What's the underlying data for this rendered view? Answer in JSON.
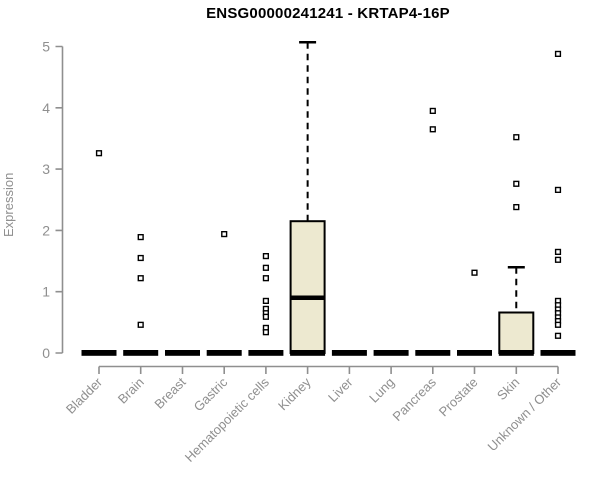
{
  "page": {
    "title": "ENSG00000241241 - KRTAP4-16P"
  },
  "chart_data": {
    "type": "boxplot",
    "title": "ENSG00000241241 - KRTAP4-16P",
    "xlabel": "",
    "ylabel": "Expression",
    "ylim": [
      0,
      5
    ],
    "yticks": [
      0,
      1,
      2,
      3,
      4,
      5
    ],
    "grid": false,
    "legend": "none",
    "categories": [
      "Bladder",
      "Brain",
      "Breast",
      "Gastric",
      "Hematopoietic cells",
      "Kidney",
      "Liver",
      "Lung",
      "Pancreas",
      "Prostate",
      "Skin",
      "Unknown / Other"
    ],
    "series": [
      {
        "category": "Bladder",
        "q1": 0,
        "median": 0,
        "q3": 0,
        "whisker_low": 0,
        "whisker_high": 0,
        "outliers": [
          3.26
        ]
      },
      {
        "category": "Brain",
        "q1": 0,
        "median": 0,
        "q3": 0,
        "whisker_low": 0,
        "whisker_high": 0,
        "outliers": [
          1.89,
          1.55,
          1.22,
          0.46
        ]
      },
      {
        "category": "Breast",
        "q1": 0,
        "median": 0,
        "q3": 0,
        "whisker_low": 0,
        "whisker_high": 0,
        "outliers": []
      },
      {
        "category": "Gastric",
        "q1": 0,
        "median": 0,
        "q3": 0,
        "whisker_low": 0,
        "whisker_high": 0,
        "outliers": [
          1.94
        ]
      },
      {
        "category": "Hematopoietic cells",
        "q1": 0,
        "median": 0,
        "q3": 0,
        "whisker_low": 0,
        "whisker_high": 0,
        "outliers": [
          1.58,
          1.39,
          1.22,
          0.85,
          0.72,
          0.65,
          0.59,
          0.41,
          0.34
        ]
      },
      {
        "category": "Kidney",
        "q1": 0,
        "median": 0.9,
        "q3": 2.15,
        "whisker_low": 0,
        "whisker_high": 5.07,
        "outliers": []
      },
      {
        "category": "Liver",
        "q1": 0,
        "median": 0,
        "q3": 0,
        "whisker_low": 0,
        "whisker_high": 0,
        "outliers": []
      },
      {
        "category": "Lung",
        "q1": 0,
        "median": 0,
        "q3": 0,
        "whisker_low": 0,
        "whisker_high": 0,
        "outliers": []
      },
      {
        "category": "Pancreas",
        "q1": 0,
        "median": 0,
        "q3": 0,
        "whisker_low": 0,
        "whisker_high": 0,
        "outliers": [
          3.95,
          3.65
        ]
      },
      {
        "category": "Prostate",
        "q1": 0,
        "median": 0,
        "q3": 0,
        "whisker_low": 0,
        "whisker_high": 0,
        "outliers": [
          1.31
        ]
      },
      {
        "category": "Skin",
        "q1": 0,
        "median": 0,
        "q3": 0.66,
        "whisker_low": 0,
        "whisker_high": 1.4,
        "outliers": [
          3.52,
          2.76,
          2.38
        ]
      },
      {
        "category": "Unknown / Other",
        "q1": 0,
        "median": 0,
        "q3": 0,
        "whisker_low": 0,
        "whisker_high": 0,
        "outliers": [
          4.88,
          2.66,
          1.65,
          1.52,
          0.85,
          0.78,
          0.71,
          0.65,
          0.58,
          0.52,
          0.46,
          0.28
        ]
      }
    ],
    "style": {
      "box_fill": "#ede9d0",
      "box_border": "#000000",
      "whisker_color": "#000000",
      "median_color": "#000000",
      "outlier_marker": "open-square",
      "axis_color": "#8f8f8f",
      "tick_label_color": "#8f8f8f",
      "title_color": "#000000",
      "background": "#ffffff"
    }
  }
}
